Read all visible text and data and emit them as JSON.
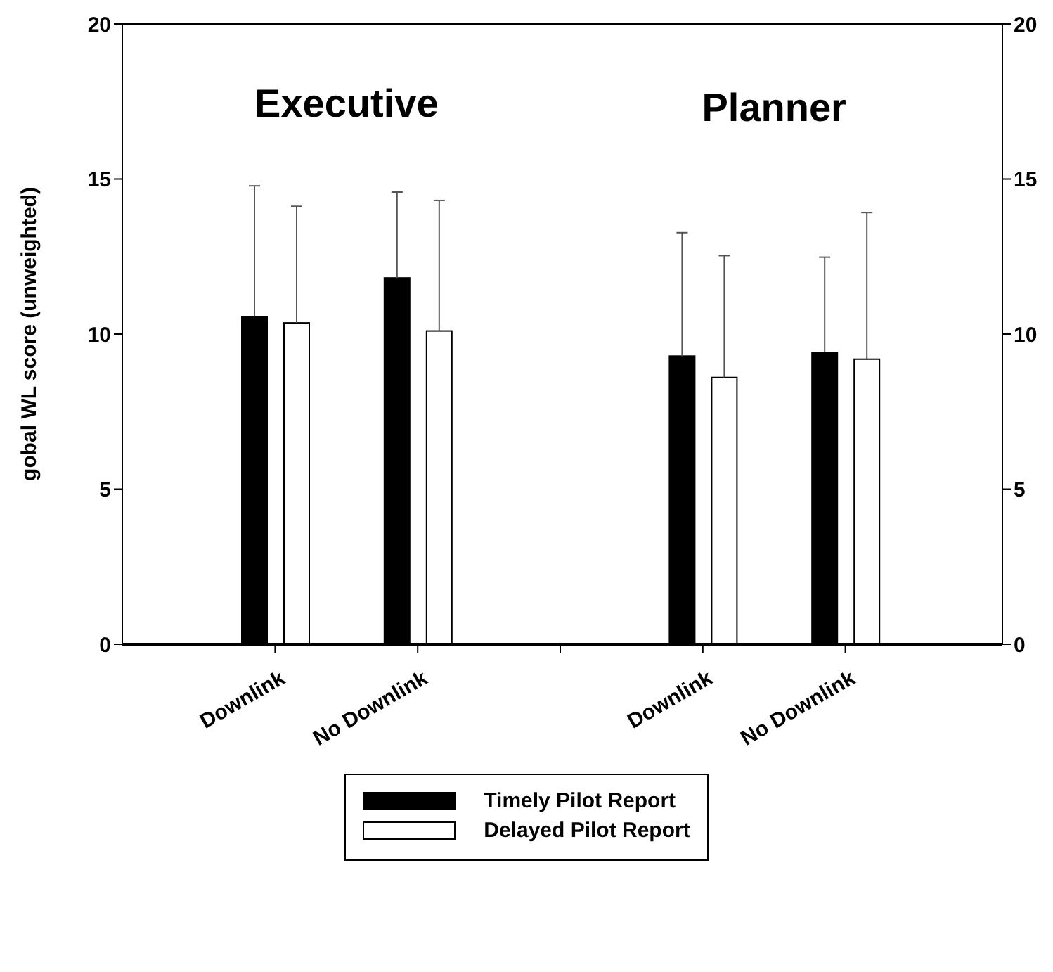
{
  "chart_data": {
    "type": "bar",
    "ylabel": "gobal WL score (unweighted)",
    "categories": [
      "Downlink",
      "No Downlink",
      null,
      "Downlink",
      "No Downlink"
    ],
    "series": [
      {
        "name": "Timely Pilot Report",
        "color": "#000000",
        "values": [
          10.56,
          11.81,
          null,
          9.29,
          9.41
        ],
        "errors": [
          [
            10.56,
            14.78
          ],
          [
            11.81,
            14.58
          ],
          null,
          [
            9.29,
            13.27
          ],
          [
            9.41,
            12.48
          ]
        ]
      },
      {
        "name": "Delayed Pilot Report",
        "color": "#ffffff",
        "values": [
          10.36,
          10.1,
          null,
          8.6,
          9.19
        ],
        "errors": [
          [
            10.36,
            14.12
          ],
          [
            10.1,
            14.31
          ],
          null,
          [
            8.6,
            12.53
          ],
          [
            9.19,
            13.92
          ]
        ]
      }
    ],
    "annotations": [
      "Executive",
      "Planner"
    ],
    "ylim": [
      0,
      20
    ],
    "yticks": [
      0,
      5,
      10,
      15,
      20
    ],
    "y2lim": [
      0,
      20
    ],
    "y2ticks": [
      0,
      5,
      10,
      15,
      20
    ],
    "grid": false,
    "legend": "bottom"
  }
}
